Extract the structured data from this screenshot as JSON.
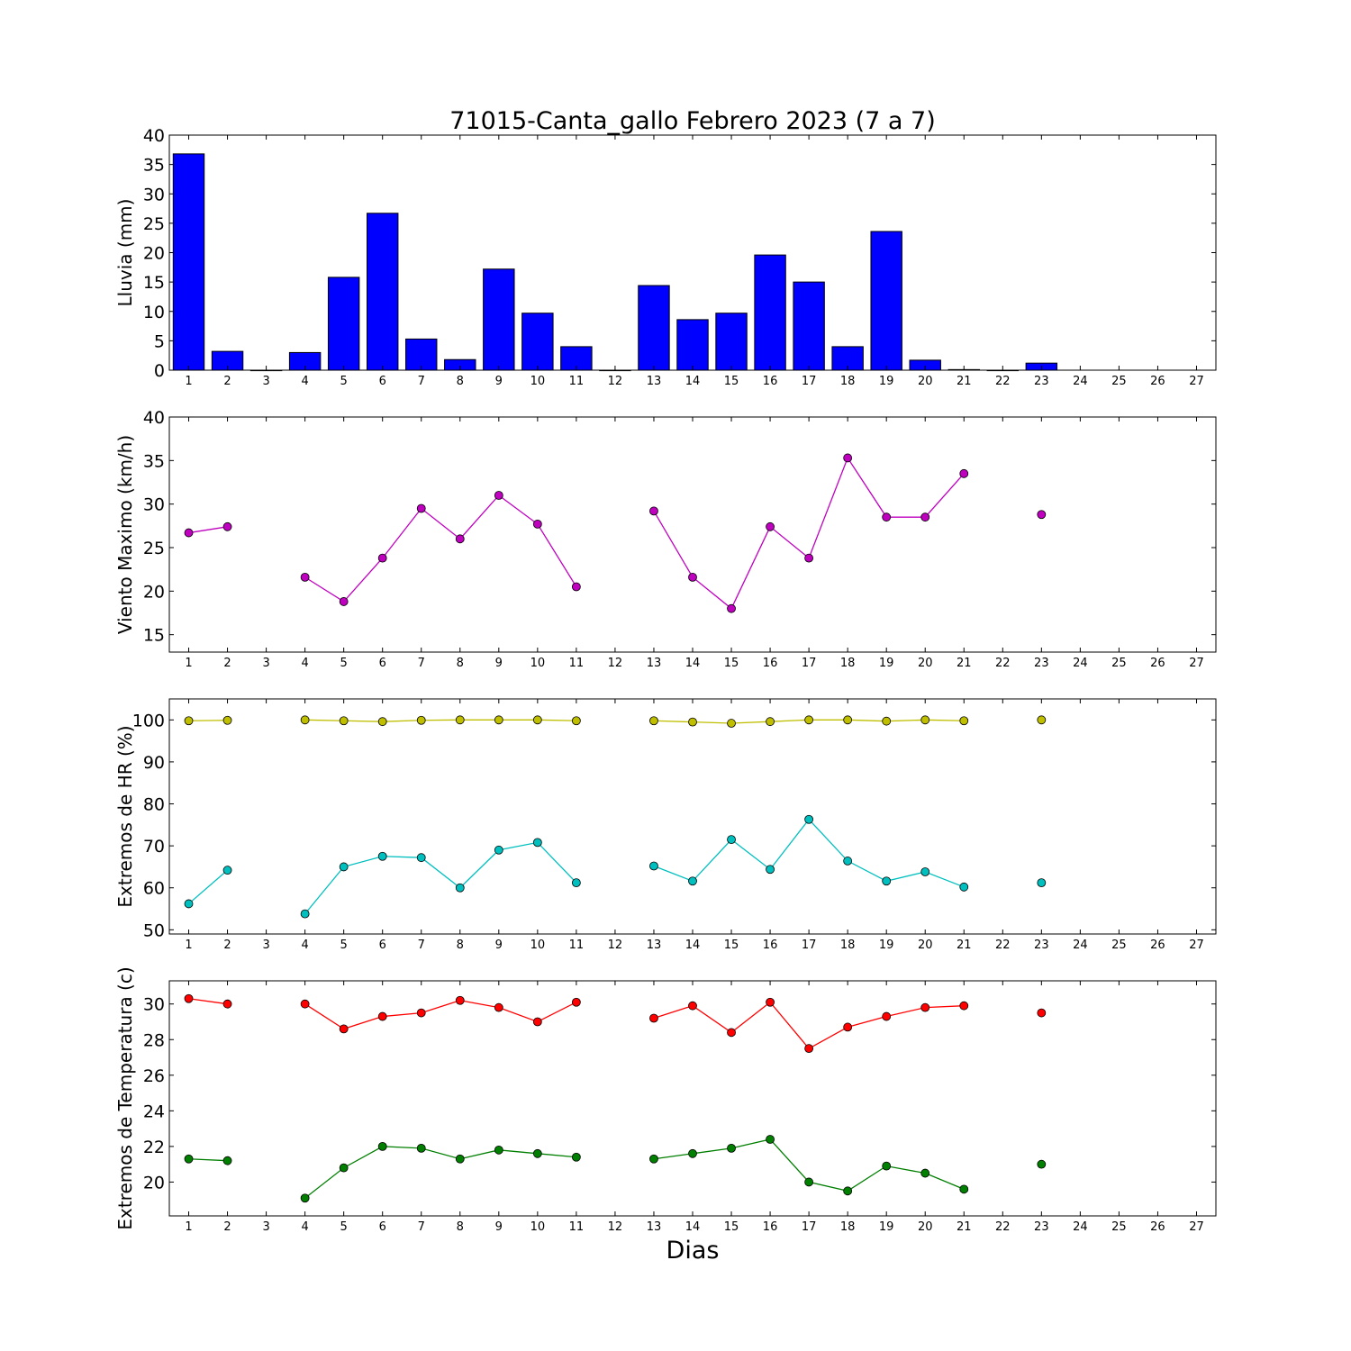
{
  "figure": {
    "title": "71015-Canta_gallo Febrero 2023  (7 a 7)",
    "xlabel": "Dias"
  },
  "chart_data": [
    {
      "type": "bar",
      "ylabel": "Lluvia (mm)",
      "xlim": [
        0.5,
        27.5
      ],
      "ylim": [
        0,
        40
      ],
      "yticks": [
        0,
        5,
        10,
        15,
        20,
        25,
        30,
        35,
        40
      ],
      "xticks": [
        1,
        2,
        3,
        4,
        5,
        6,
        7,
        8,
        9,
        10,
        11,
        12,
        13,
        14,
        15,
        16,
        17,
        18,
        19,
        20,
        21,
        22,
        23,
        24,
        25,
        26,
        27
      ],
      "grid": false,
      "color": "#0000ff",
      "x": [
        1,
        2,
        3,
        4,
        5,
        6,
        7,
        8,
        9,
        10,
        11,
        12,
        13,
        14,
        15,
        16,
        17,
        18,
        19,
        20,
        21,
        22,
        23,
        24,
        25,
        26,
        27
      ],
      "values": [
        36.8,
        3.2,
        0,
        3.0,
        15.8,
        26.7,
        5.3,
        1.8,
        17.2,
        9.7,
        4.0,
        0,
        14.4,
        8.6,
        9.7,
        19.6,
        15.0,
        4.0,
        23.6,
        1.7,
        0.1,
        0,
        1.2,
        null,
        null,
        null,
        null
      ]
    },
    {
      "type": "line",
      "ylabel": "Viento Maximo (km/h)",
      "xlim": [
        0.5,
        27.5
      ],
      "ylim": [
        13,
        40
      ],
      "yticks": [
        15,
        20,
        25,
        30,
        35,
        40
      ],
      "xticks": [
        1,
        2,
        3,
        4,
        5,
        6,
        7,
        8,
        9,
        10,
        11,
        12,
        13,
        14,
        15,
        16,
        17,
        18,
        19,
        20,
        21,
        22,
        23,
        24,
        25,
        26,
        27
      ],
      "grid": false,
      "x": [
        1,
        2,
        3,
        4,
        5,
        6,
        7,
        8,
        9,
        10,
        11,
        12,
        13,
        14,
        15,
        16,
        17,
        18,
        19,
        20,
        21,
        22,
        23,
        24,
        25,
        26,
        27
      ],
      "series": [
        {
          "color": "#bf00bf",
          "values": [
            26.7,
            27.4,
            null,
            21.6,
            18.8,
            23.8,
            29.5,
            26.0,
            31.0,
            27.7,
            20.5,
            null,
            29.2,
            21.6,
            18.0,
            27.4,
            23.8,
            35.3,
            28.5,
            28.5,
            33.5,
            null,
            28.8,
            null,
            null,
            null,
            null
          ]
        }
      ]
    },
    {
      "type": "line",
      "ylabel": "Extremos de HR (%)",
      "xlim": [
        0.5,
        27.5
      ],
      "ylim": [
        49,
        105
      ],
      "yticks": [
        50,
        60,
        70,
        80,
        90,
        100
      ],
      "xticks": [
        1,
        2,
        3,
        4,
        5,
        6,
        7,
        8,
        9,
        10,
        11,
        12,
        13,
        14,
        15,
        16,
        17,
        18,
        19,
        20,
        21,
        22,
        23,
        24,
        25,
        26,
        27
      ],
      "grid": false,
      "x": [
        1,
        2,
        3,
        4,
        5,
        6,
        7,
        8,
        9,
        10,
        11,
        12,
        13,
        14,
        15,
        16,
        17,
        18,
        19,
        20,
        21,
        22,
        23,
        24,
        25,
        26,
        27
      ],
      "series": [
        {
          "color": "#bfbf00",
          "values": [
            99.8,
            99.9,
            null,
            100.0,
            99.8,
            99.6,
            99.9,
            100.0,
            100.0,
            100.0,
            99.8,
            null,
            99.8,
            99.5,
            99.2,
            99.6,
            100.0,
            100.0,
            99.7,
            100.0,
            99.8,
            null,
            100.0,
            null,
            null,
            null,
            null
          ]
        },
        {
          "color": "#00bfbf",
          "values": [
            56.2,
            64.2,
            null,
            53.8,
            65.0,
            67.5,
            67.2,
            60.0,
            69.0,
            70.8,
            61.2,
            null,
            65.2,
            61.6,
            71.5,
            64.4,
            76.3,
            66.4,
            61.6,
            63.8,
            60.2,
            null,
            61.2,
            null,
            null,
            null,
            null
          ]
        }
      ]
    },
    {
      "type": "line",
      "ylabel": "Extremos de Temperatura (c)",
      "xlim": [
        0.5,
        27.5
      ],
      "ylim": [
        18.1,
        31.3
      ],
      "yticks": [
        20,
        22,
        24,
        26,
        28,
        30
      ],
      "xticks": [
        1,
        2,
        3,
        4,
        5,
        6,
        7,
        8,
        9,
        10,
        11,
        12,
        13,
        14,
        15,
        16,
        17,
        18,
        19,
        20,
        21,
        22,
        23,
        24,
        25,
        26,
        27
      ],
      "grid": false,
      "x": [
        1,
        2,
        3,
        4,
        5,
        6,
        7,
        8,
        9,
        10,
        11,
        12,
        13,
        14,
        15,
        16,
        17,
        18,
        19,
        20,
        21,
        22,
        23,
        24,
        25,
        26,
        27
      ],
      "series": [
        {
          "color": "#ff0000",
          "values": [
            30.3,
            30.0,
            null,
            30.0,
            28.6,
            29.3,
            29.5,
            30.2,
            29.8,
            29.0,
            30.1,
            null,
            29.2,
            29.9,
            28.4,
            30.1,
            27.5,
            28.7,
            29.3,
            29.8,
            29.9,
            null,
            29.5,
            null,
            null,
            null,
            null
          ]
        },
        {
          "color": "#007f00",
          "values": [
            21.3,
            21.2,
            null,
            19.1,
            20.8,
            22.0,
            21.9,
            21.3,
            21.8,
            21.6,
            21.4,
            null,
            21.3,
            21.6,
            21.9,
            22.4,
            20.0,
            19.5,
            20.9,
            20.5,
            19.6,
            null,
            21.0,
            null,
            null,
            null,
            null
          ]
        }
      ]
    }
  ]
}
